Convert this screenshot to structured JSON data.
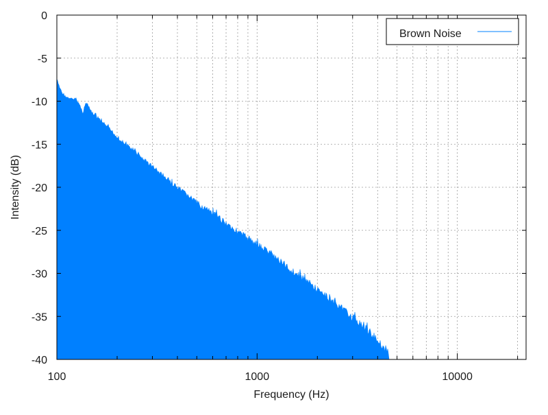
{
  "chart_data": {
    "type": "area",
    "title": "",
    "xlabel": "Frequency (Hz)",
    "ylabel": "Intensity (dB)",
    "xscale": "log",
    "xlim": [
      100,
      22050
    ],
    "ylim": [
      -40,
      0
    ],
    "xticks": [
      100,
      1000,
      10000
    ],
    "xtick_labels": [
      "100",
      "1000",
      "10000"
    ],
    "yticks": [
      0,
      -5,
      -10,
      -15,
      -20,
      -25,
      -30,
      -35,
      -40
    ],
    "ytick_labels": [
      "0",
      "-5",
      "-10",
      "-15",
      "-20",
      "-25",
      "-30",
      "-35",
      "-40"
    ],
    "grid": true,
    "legend_position": "top-right",
    "series": [
      {
        "name": "Brown Noise",
        "color": "#0080ff",
        "x": [
          100,
          102,
          105,
          108,
          112,
          116,
          120,
          125,
          130,
          135,
          140,
          150,
          160,
          175,
          190,
          200,
          220,
          240,
          260,
          300,
          350,
          400,
          450,
          500,
          600,
          700,
          800,
          900,
          1000,
          1200,
          1500,
          1800,
          2000,
          2500,
          3000,
          3500,
          4000,
          4500,
          4600
        ],
        "y": [
          -7.3,
          -8.0,
          -8.7,
          -9.2,
          -9.4,
          -9.6,
          -9.6,
          -9.6,
          -10.3,
          -11.2,
          -10.0,
          -11.2,
          -11.8,
          -12.6,
          -13.4,
          -14.0,
          -14.8,
          -15.4,
          -16.2,
          -17.3,
          -18.7,
          -19.8,
          -20.6,
          -21.5,
          -22.7,
          -23.8,
          -24.8,
          -25.5,
          -26.2,
          -27.5,
          -29.3,
          -30.6,
          -31.5,
          -33.2,
          -34.7,
          -36.0,
          -37.3,
          -38.8,
          -40.0
        ]
      }
    ]
  }
}
